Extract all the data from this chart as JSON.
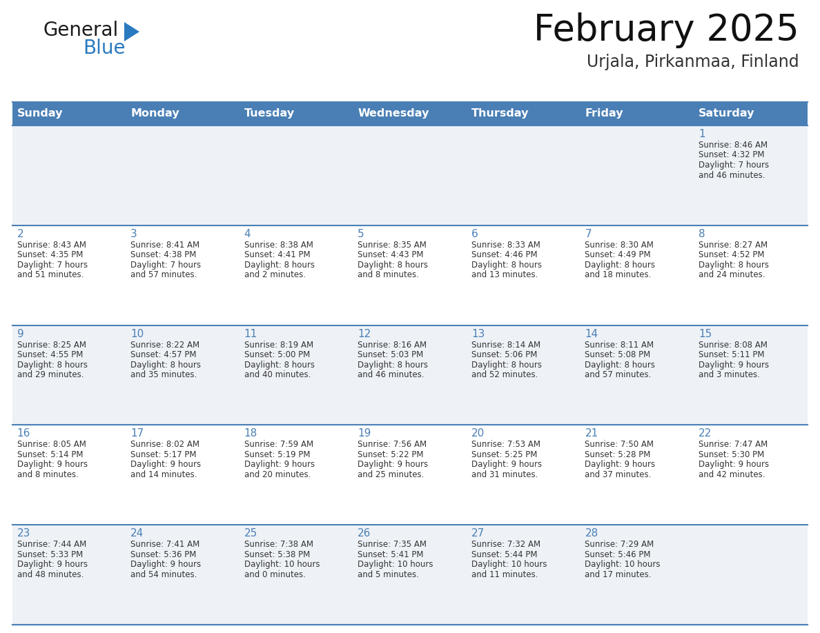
{
  "title": "February 2025",
  "subtitle": "Urjala, Pirkanmaa, Finland",
  "header_bg": "#4a7fb5",
  "header_text_color": "#ffffff",
  "day_names": [
    "Sunday",
    "Monday",
    "Tuesday",
    "Wednesday",
    "Thursday",
    "Friday",
    "Saturday"
  ],
  "row_bg_even": "#eef2f7",
  "row_bg_odd": "#ffffff",
  "cell_border_color": "#4a7fb5",
  "date_text_color": "#4a7fb5",
  "info_text_color": "#333333",
  "logo_general_color": "#1a1a1a",
  "logo_blue_color": "#2a7abf",
  "weeks": [
    [
      null,
      null,
      null,
      null,
      null,
      null,
      1
    ],
    [
      2,
      3,
      4,
      5,
      6,
      7,
      8
    ],
    [
      9,
      10,
      11,
      12,
      13,
      14,
      15
    ],
    [
      16,
      17,
      18,
      19,
      20,
      21,
      22
    ],
    [
      23,
      24,
      25,
      26,
      27,
      28,
      null
    ]
  ],
  "cell_data": {
    "1": [
      "Sunrise: 8:46 AM",
      "Sunset: 4:32 PM",
      "Daylight: 7 hours",
      "and 46 minutes."
    ],
    "2": [
      "Sunrise: 8:43 AM",
      "Sunset: 4:35 PM",
      "Daylight: 7 hours",
      "and 51 minutes."
    ],
    "3": [
      "Sunrise: 8:41 AM",
      "Sunset: 4:38 PM",
      "Daylight: 7 hours",
      "and 57 minutes."
    ],
    "4": [
      "Sunrise: 8:38 AM",
      "Sunset: 4:41 PM",
      "Daylight: 8 hours",
      "and 2 minutes."
    ],
    "5": [
      "Sunrise: 8:35 AM",
      "Sunset: 4:43 PM",
      "Daylight: 8 hours",
      "and 8 minutes."
    ],
    "6": [
      "Sunrise: 8:33 AM",
      "Sunset: 4:46 PM",
      "Daylight: 8 hours",
      "and 13 minutes."
    ],
    "7": [
      "Sunrise: 8:30 AM",
      "Sunset: 4:49 PM",
      "Daylight: 8 hours",
      "and 18 minutes."
    ],
    "8": [
      "Sunrise: 8:27 AM",
      "Sunset: 4:52 PM",
      "Daylight: 8 hours",
      "and 24 minutes."
    ],
    "9": [
      "Sunrise: 8:25 AM",
      "Sunset: 4:55 PM",
      "Daylight: 8 hours",
      "and 29 minutes."
    ],
    "10": [
      "Sunrise: 8:22 AM",
      "Sunset: 4:57 PM",
      "Daylight: 8 hours",
      "and 35 minutes."
    ],
    "11": [
      "Sunrise: 8:19 AM",
      "Sunset: 5:00 PM",
      "Daylight: 8 hours",
      "and 40 minutes."
    ],
    "12": [
      "Sunrise: 8:16 AM",
      "Sunset: 5:03 PM",
      "Daylight: 8 hours",
      "and 46 minutes."
    ],
    "13": [
      "Sunrise: 8:14 AM",
      "Sunset: 5:06 PM",
      "Daylight: 8 hours",
      "and 52 minutes."
    ],
    "14": [
      "Sunrise: 8:11 AM",
      "Sunset: 5:08 PM",
      "Daylight: 8 hours",
      "and 57 minutes."
    ],
    "15": [
      "Sunrise: 8:08 AM",
      "Sunset: 5:11 PM",
      "Daylight: 9 hours",
      "and 3 minutes."
    ],
    "16": [
      "Sunrise: 8:05 AM",
      "Sunset: 5:14 PM",
      "Daylight: 9 hours",
      "and 8 minutes."
    ],
    "17": [
      "Sunrise: 8:02 AM",
      "Sunset: 5:17 PM",
      "Daylight: 9 hours",
      "and 14 minutes."
    ],
    "18": [
      "Sunrise: 7:59 AM",
      "Sunset: 5:19 PM",
      "Daylight: 9 hours",
      "and 20 minutes."
    ],
    "19": [
      "Sunrise: 7:56 AM",
      "Sunset: 5:22 PM",
      "Daylight: 9 hours",
      "and 25 minutes."
    ],
    "20": [
      "Sunrise: 7:53 AM",
      "Sunset: 5:25 PM",
      "Daylight: 9 hours",
      "and 31 minutes."
    ],
    "21": [
      "Sunrise: 7:50 AM",
      "Sunset: 5:28 PM",
      "Daylight: 9 hours",
      "and 37 minutes."
    ],
    "22": [
      "Sunrise: 7:47 AM",
      "Sunset: 5:30 PM",
      "Daylight: 9 hours",
      "and 42 minutes."
    ],
    "23": [
      "Sunrise: 7:44 AM",
      "Sunset: 5:33 PM",
      "Daylight: 9 hours",
      "and 48 minutes."
    ],
    "24": [
      "Sunrise: 7:41 AM",
      "Sunset: 5:36 PM",
      "Daylight: 9 hours",
      "and 54 minutes."
    ],
    "25": [
      "Sunrise: 7:38 AM",
      "Sunset: 5:38 PM",
      "Daylight: 10 hours",
      "and 0 minutes."
    ],
    "26": [
      "Sunrise: 7:35 AM",
      "Sunset: 5:41 PM",
      "Daylight: 10 hours",
      "and 5 minutes."
    ],
    "27": [
      "Sunrise: 7:32 AM",
      "Sunset: 5:44 PM",
      "Daylight: 10 hours",
      "and 11 minutes."
    ],
    "28": [
      "Sunrise: 7:29 AM",
      "Sunset: 5:46 PM",
      "Daylight: 10 hours",
      "and 17 minutes."
    ]
  },
  "figsize": [
    11.88,
    9.18
  ],
  "dpi": 100
}
